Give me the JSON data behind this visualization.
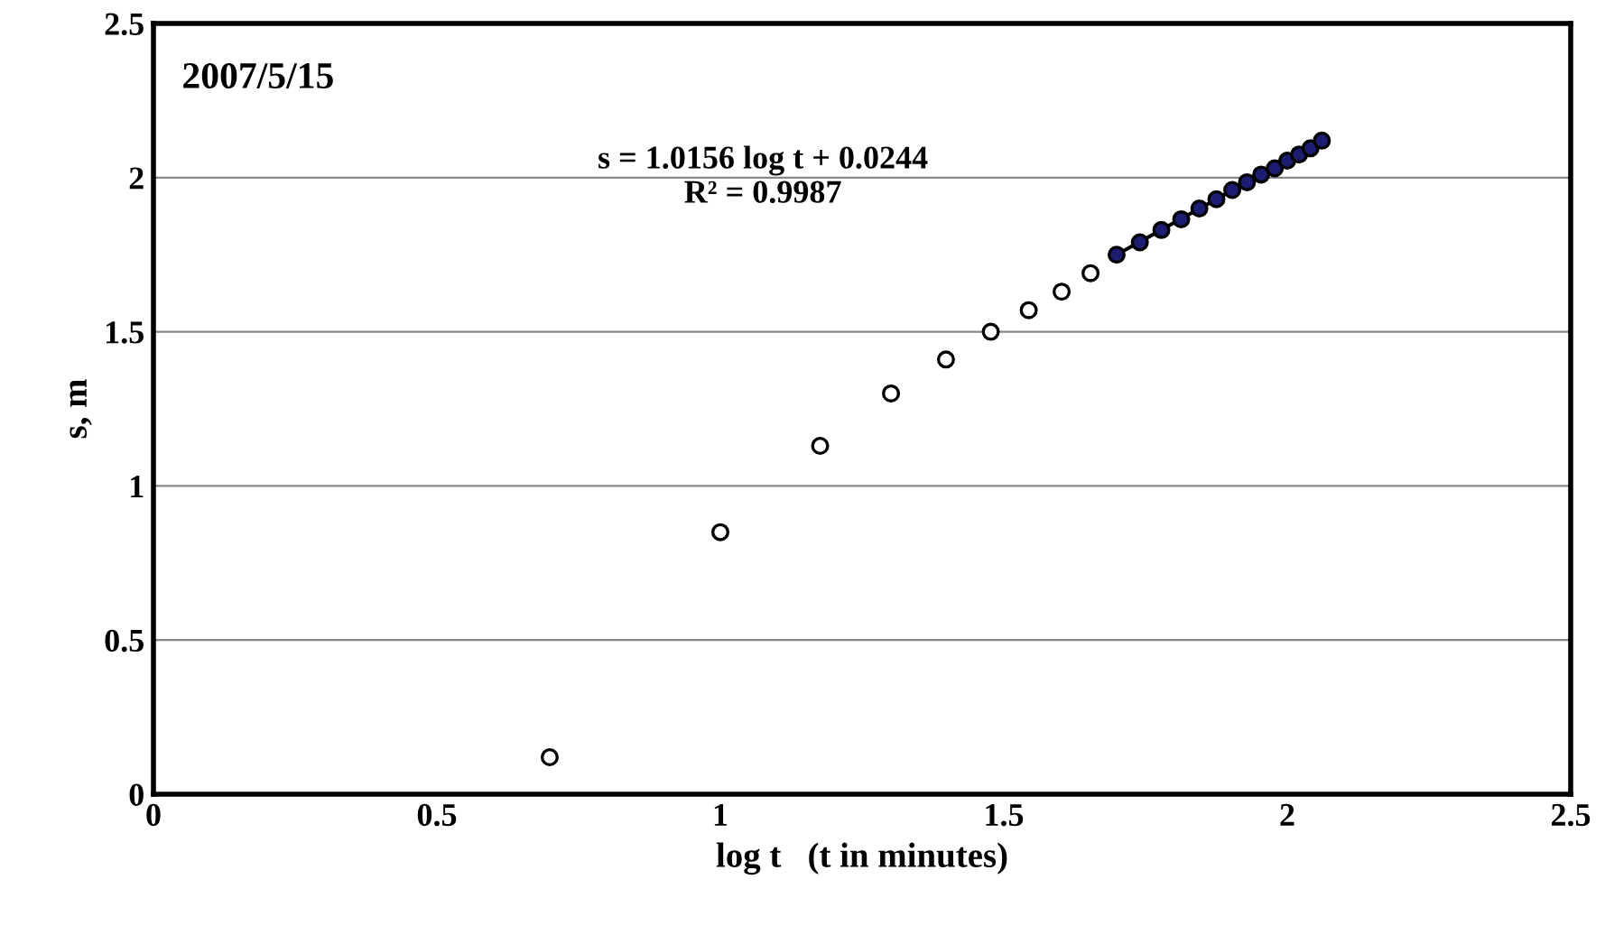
{
  "chart_data": {
    "type": "scatter",
    "xlabel": "log t   (t in minutes)",
    "ylabel": "s, m",
    "annotations": [
      "2007/5/15",
      "s = 1.0156 log t + 0.0244\nR² = 0.9987"
    ],
    "series": [
      {
        "color": "#ffffff",
        "marker": "circle",
        "x": [
          0.699,
          1.0,
          1.176,
          1.301,
          1.398,
          1.477,
          1.544,
          1.602,
          1.653
        ],
        "values": [
          0.12,
          0.85,
          1.13,
          1.3,
          1.41,
          1.5,
          1.57,
          1.63,
          1.69
        ]
      },
      {
        "color": "#1c1c70",
        "marker": "circle",
        "x": [
          1.699,
          1.74,
          1.778,
          1.813,
          1.845,
          1.875,
          1.903,
          1.929,
          1.954,
          1.978,
          2.0,
          2.021,
          2.041,
          2.061
        ],
        "values": [
          1.75,
          1.79,
          1.83,
          1.865,
          1.9,
          1.93,
          1.96,
          1.985,
          2.01,
          2.03,
          2.055,
          2.075,
          2.095,
          2.12
        ]
      },
      {
        "type": "line",
        "color": "#000000",
        "line_style": "solid",
        "x": [
          1.699,
          2.061
        ],
        "values": [
          1.75,
          2.12
        ]
      }
    ],
    "xlim": [
      0,
      2.5
    ],
    "ylim": [
      0,
      2.5
    ],
    "xticks": [
      0,
      0.5,
      1,
      1.5,
      2,
      2.5
    ],
    "yticks": [
      0,
      0.5,
      1,
      1.5,
      2,
      2.5
    ],
    "grid": "y",
    "legend": false
  }
}
